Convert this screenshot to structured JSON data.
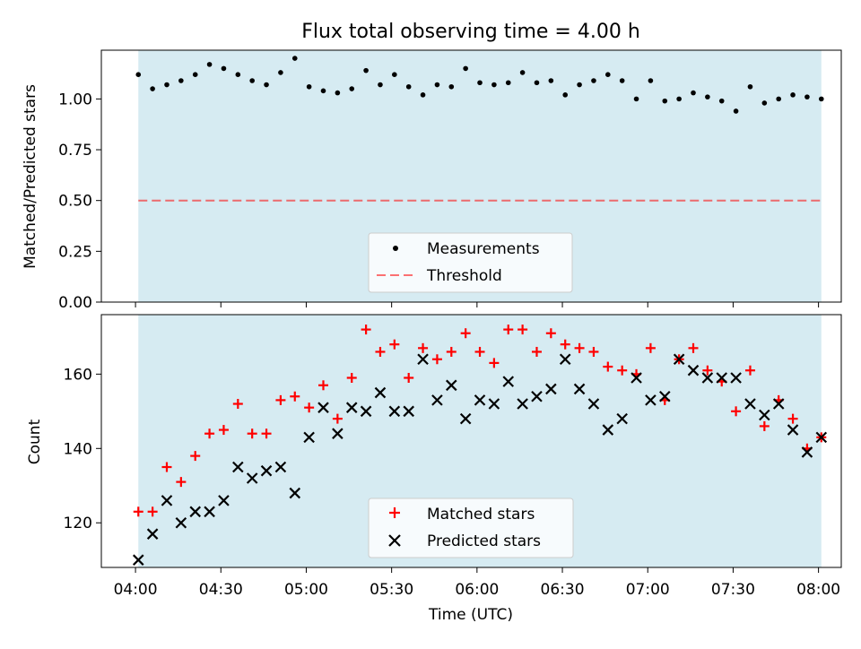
{
  "title": "Flux total observing time = 4.00 h",
  "colors": {
    "band": "#add8e6",
    "measurement": "#000000",
    "threshold": "#ff0000",
    "matched": "#ff0000",
    "predicted": "#000000"
  },
  "chart_data": [
    {
      "type": "scatter",
      "ylabel": "Matched/Predicted stars",
      "xlabel": "",
      "xlim_minutes_utc": [
        228,
        488
      ],
      "ylim": [
        0,
        1.24
      ],
      "yticks": [
        0.0,
        0.25,
        0.5,
        0.75,
        1.0
      ],
      "ytick_labels": [
        "0.00",
        "0.25",
        "0.50",
        "0.75",
        "1.00"
      ],
      "observing_window_utc": [
        "04:01",
        "08:01"
      ],
      "threshold": 0.5,
      "legend": {
        "position": "lower center",
        "entries": [
          "Measurements",
          "Threshold"
        ]
      },
      "x": [
        "04:01",
        "04:06",
        "04:11",
        "04:16",
        "04:21",
        "04:26",
        "04:31",
        "04:36",
        "04:41",
        "04:46",
        "04:51",
        "04:56",
        "05:01",
        "05:06",
        "05:11",
        "05:16",
        "05:21",
        "05:26",
        "05:31",
        "05:36",
        "05:41",
        "05:46",
        "05:51",
        "05:56",
        "06:01",
        "06:06",
        "06:11",
        "06:16",
        "06:21",
        "06:26",
        "06:31",
        "06:36",
        "06:41",
        "06:46",
        "06:51",
        "06:56",
        "07:01",
        "07:06",
        "07:11",
        "07:16",
        "07:21",
        "07:26",
        "07:31",
        "07:36",
        "07:41",
        "07:46",
        "07:51",
        "07:56",
        "08:01"
      ],
      "series": [
        {
          "name": "Measurements",
          "values": [
            1.12,
            1.05,
            1.07,
            1.09,
            1.12,
            1.17,
            1.15,
            1.12,
            1.09,
            1.07,
            1.13,
            1.2,
            1.06,
            1.04,
            1.03,
            1.05,
            1.14,
            1.07,
            1.12,
            1.06,
            1.02,
            1.07,
            1.06,
            1.15,
            1.08,
            1.07,
            1.08,
            1.13,
            1.08,
            1.09,
            1.02,
            1.07,
            1.09,
            1.12,
            1.09,
            1.0,
            1.09,
            0.99,
            1.0,
            1.03,
            1.01,
            0.99,
            0.94,
            1.06,
            0.98,
            1.0,
            1.02,
            1.01,
            1.0
          ]
        }
      ]
    },
    {
      "type": "scatter",
      "ylabel": "Count",
      "xlabel": "Time (UTC)",
      "xlim_minutes_utc": [
        228,
        488
      ],
      "ylim": [
        108,
        176
      ],
      "yticks": [
        120,
        140,
        160
      ],
      "xtick_labels": [
        "04:00",
        "04:30",
        "05:00",
        "05:30",
        "06:00",
        "06:30",
        "07:00",
        "07:30",
        "08:00"
      ],
      "observing_window_utc": [
        "04:01",
        "08:01"
      ],
      "legend": {
        "position": "lower center",
        "entries": [
          "Matched stars",
          "Predicted stars"
        ]
      },
      "x": [
        "04:01",
        "04:06",
        "04:11",
        "04:16",
        "04:21",
        "04:26",
        "04:31",
        "04:36",
        "04:41",
        "04:46",
        "04:51",
        "04:56",
        "05:01",
        "05:06",
        "05:11",
        "05:16",
        "05:21",
        "05:26",
        "05:31",
        "05:36",
        "05:41",
        "05:46",
        "05:51",
        "05:56",
        "06:01",
        "06:06",
        "06:11",
        "06:16",
        "06:21",
        "06:26",
        "06:31",
        "06:36",
        "06:41",
        "06:46",
        "06:51",
        "06:56",
        "07:01",
        "07:06",
        "07:11",
        "07:16",
        "07:21",
        "07:26",
        "07:31",
        "07:36",
        "07:41",
        "07:46",
        "07:51",
        "07:56",
        "08:01"
      ],
      "series": [
        {
          "name": "Matched stars",
          "values": [
            123,
            123,
            135,
            131,
            138,
            144,
            145,
            152,
            144,
            144,
            153,
            154,
            151,
            157,
            148,
            159,
            172,
            166,
            168,
            159,
            167,
            164,
            166,
            171,
            166,
            163,
            172,
            172,
            166,
            171,
            168,
            167,
            166,
            162,
            161,
            160,
            167,
            153,
            164,
            167,
            161,
            158,
            150,
            161,
            146,
            153,
            148,
            140,
            143
          ]
        },
        {
          "name": "Predicted stars",
          "values": [
            110,
            117,
            126,
            120,
            123,
            123,
            126,
            135,
            132,
            134,
            135,
            128,
            143,
            151,
            144,
            151,
            150,
            155,
            150,
            150,
            164,
            153,
            157,
            148,
            153,
            152,
            158,
            152,
            154,
            156,
            164,
            156,
            152,
            145,
            148,
            159,
            153,
            154,
            164,
            161,
            159,
            159,
            159,
            152,
            149,
            152,
            145,
            139,
            143
          ]
        }
      ]
    }
  ]
}
